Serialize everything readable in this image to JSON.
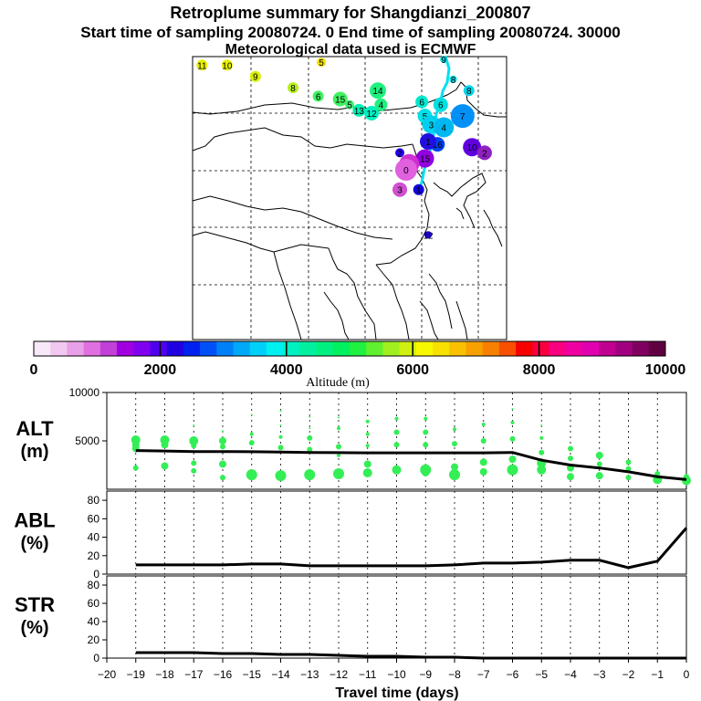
{
  "header": {
    "title": "Retroplume summary for Shangdianzi_200807",
    "sampling": "Start time of sampling 20080724.     0     End time of sampling 20080724. 30000",
    "met": "Meteorological data used is ECMWF"
  },
  "colors": {
    "scale": [
      "#f8e8f8",
      "#f0c8f0",
      "#e8a0e8",
      "#e070e0",
      "#c040d8",
      "#a000e0",
      "#8000f0",
      "#5000f0",
      "#2000e0",
      "#0020f0",
      "#0050f8",
      "#0080f8",
      "#00a8f8",
      "#00d0f8",
      "#00f0f0",
      "#00f0c0",
      "#00f0a0",
      "#00f080",
      "#00f060",
      "#20f040",
      "#60f030",
      "#a0f020",
      "#d0f010",
      "#f8f800",
      "#f8e000",
      "#f8c000",
      "#f8a000",
      "#f88000",
      "#f85000",
      "#f80000",
      "#f80040",
      "#f80080",
      "#f000a0",
      "#e000b0",
      "#c00090",
      "#a00080",
      "#800060",
      "#600040"
    ],
    "line": "#000000",
    "dots": "#33ee55"
  },
  "colorbar": {
    "ticks": [
      "0",
      "2000",
      "4000",
      "6000",
      "8000",
      "10000"
    ],
    "label": "Altitude (m)"
  },
  "map": {
    "markers": [
      {
        "t": "11",
        "lon": 0.03,
        "lat": 0.03,
        "c": "#e8f000",
        "s": 6
      },
      {
        "t": "10",
        "lon": 0.11,
        "lat": 0.03,
        "c": "#e8f000",
        "s": 6
      },
      {
        "t": "9",
        "lon": 0.2,
        "lat": 0.07,
        "c": "#d8f000",
        "s": 6
      },
      {
        "t": "8",
        "lon": 0.32,
        "lat": 0.11,
        "c": "#b8f020",
        "s": 6
      },
      {
        "t": "5",
        "lon": 0.41,
        "lat": 0.02,
        "c": "#f0e000",
        "s": 5
      },
      {
        "t": "6",
        "lon": 0.4,
        "lat": 0.14,
        "c": "#40f060",
        "s": 6
      },
      {
        "t": "15",
        "lon": 0.47,
        "lat": 0.15,
        "c": "#40f060",
        "s": 8
      },
      {
        "t": "5",
        "lon": 0.5,
        "lat": 0.17,
        "c": "#40f070",
        "s": 5
      },
      {
        "t": "13",
        "lon": 0.53,
        "lat": 0.19,
        "c": "#00f0b0",
        "s": 7
      },
      {
        "t": "12",
        "lon": 0.57,
        "lat": 0.2,
        "c": "#00f0c0",
        "s": 8
      },
      {
        "t": "14",
        "lon": 0.59,
        "lat": 0.12,
        "c": "#20f080",
        "s": 9
      },
      {
        "t": "4",
        "lon": 0.6,
        "lat": 0.17,
        "c": "#20f080",
        "s": 7
      },
      {
        "t": "6",
        "lon": 0.73,
        "lat": 0.16,
        "c": "#00e8d0",
        "s": 7
      },
      {
        "t": "5",
        "lon": 0.74,
        "lat": 0.21,
        "c": "#00e0e8",
        "s": 8
      },
      {
        "t": "3",
        "lon": 0.76,
        "lat": 0.24,
        "c": "#00d0f0",
        "s": 10
      },
      {
        "t": "4",
        "lon": 0.8,
        "lat": 0.25,
        "c": "#00b8f0",
        "s": 11
      },
      {
        "t": "7",
        "lon": 0.86,
        "lat": 0.21,
        "c": "#0090f8",
        "s": 13
      },
      {
        "t": "8",
        "lon": 0.88,
        "lat": 0.12,
        "c": "#00d8f0",
        "s": 6
      },
      {
        "t": "6",
        "lon": 0.79,
        "lat": 0.17,
        "c": "#00e0e0",
        "s": 8
      },
      {
        "t": "10",
        "lon": 0.89,
        "lat": 0.32,
        "c": "#6000e0",
        "s": 10
      },
      {
        "t": "2",
        "lon": 0.93,
        "lat": 0.34,
        "c": "#9020c0",
        "s": 8
      },
      {
        "t": "16",
        "lon": 0.78,
        "lat": 0.31,
        "c": "#0040f0",
        "s": 8
      },
      {
        "t": "1",
        "lon": 0.75,
        "lat": 0.3,
        "c": "#2010e0",
        "s": 9
      },
      {
        "t": "15",
        "lon": 0.74,
        "lat": 0.36,
        "c": "#9000e0",
        "s": 10
      },
      {
        "t": "1",
        "lon": 0.69,
        "lat": 0.38,
        "c": "#d030d0",
        "s": 11
      },
      {
        "t": "0",
        "lon": 0.68,
        "lat": 0.4,
        "c": "#e060e0",
        "s": 12
      },
      {
        "t": "3",
        "lon": 0.66,
        "lat": 0.47,
        "c": "#d050d0",
        "s": 8
      },
      {
        "t": "1",
        "lon": 0.72,
        "lat": 0.47,
        "c": "#1000e0",
        "s": 6
      },
      {
        "t": "2",
        "lon": 0.66,
        "lat": 0.34,
        "c": "#2000f0",
        "s": 5
      },
      {
        "t": "12",
        "lon": 0.75,
        "lat": 0.63,
        "c": "#2000e0",
        "s": 4
      },
      {
        "t": "9",
        "lon": 0.8,
        "lat": 0.01,
        "c": "#00e0e8",
        "s": 4
      },
      {
        "t": "8",
        "lon": 0.83,
        "lat": 0.08,
        "c": "#00e0e8",
        "s": 4
      }
    ]
  },
  "chart_data": [
    {
      "type": "scatter+line",
      "name": "ALT (m)",
      "ylabel_top": "ALT",
      "ylabel_unit": "(m)",
      "ylim": [
        0,
        10000
      ],
      "yticks": [
        "5000",
        "10000"
      ],
      "ytick_values": [
        5000,
        10000
      ],
      "xlim": [
        -20,
        0
      ],
      "line": {
        "x": [
          -19,
          -18,
          -17,
          -16,
          -15,
          -14,
          -13,
          -12,
          -11,
          -10,
          -9,
          -8,
          -7,
          -6,
          -5,
          -4,
          -3,
          -2,
          -1,
          0
        ],
        "y": [
          4000,
          3950,
          3900,
          3900,
          3880,
          3850,
          3800,
          3780,
          3760,
          3760,
          3760,
          3760,
          3760,
          3800,
          3000,
          2500,
          2200,
          1800,
          1300,
          1000
        ]
      },
      "dots": [
        {
          "x": -19,
          "y": 5100,
          "s": 5
        },
        {
          "x": -19,
          "y": 4600,
          "s": 4
        },
        {
          "x": -19,
          "y": 2200,
          "s": 3
        },
        {
          "x": -19,
          "y": 4200,
          "s": 4
        },
        {
          "x": -18,
          "y": 5100,
          "s": 5
        },
        {
          "x": -18,
          "y": 4600,
          "s": 4
        },
        {
          "x": -18,
          "y": 2400,
          "s": 4
        },
        {
          "x": -17,
          "y": 5000,
          "s": 5
        },
        {
          "x": -17,
          "y": 4500,
          "s": 3
        },
        {
          "x": -17,
          "y": 2700,
          "s": 3
        },
        {
          "x": -17,
          "y": 1900,
          "s": 3
        },
        {
          "x": -17,
          "y": 6600,
          "s": 1
        },
        {
          "x": -16,
          "y": 5000,
          "s": 4
        },
        {
          "x": -16,
          "y": 4400,
          "s": 3
        },
        {
          "x": -16,
          "y": 2600,
          "s": 4
        },
        {
          "x": -16,
          "y": 1200,
          "s": 3
        },
        {
          "x": -16,
          "y": 6000,
          "s": 1
        },
        {
          "x": -15,
          "y": 5700,
          "s": 2
        },
        {
          "x": -15,
          "y": 4800,
          "s": 3
        },
        {
          "x": -15,
          "y": 1500,
          "s": 6
        },
        {
          "x": -15,
          "y": 7700,
          "s": 1
        },
        {
          "x": -14,
          "y": 5400,
          "s": 2
        },
        {
          "x": -14,
          "y": 4300,
          "s": 3
        },
        {
          "x": -14,
          "y": 1400,
          "s": 6
        },
        {
          "x": -14,
          "y": 8100,
          "s": 1
        },
        {
          "x": -14,
          "y": 6600,
          "s": 1
        },
        {
          "x": -13,
          "y": 5300,
          "s": 3
        },
        {
          "x": -13,
          "y": 4100,
          "s": 3
        },
        {
          "x": -13,
          "y": 1500,
          "s": 6
        },
        {
          "x": -13,
          "y": 7500,
          "s": 1
        },
        {
          "x": -13,
          "y": 6300,
          "s": 1
        },
        {
          "x": -12,
          "y": 6300,
          "s": 2
        },
        {
          "x": -12,
          "y": 4400,
          "s": 3
        },
        {
          "x": -12,
          "y": 3500,
          "s": 2
        },
        {
          "x": -12,
          "y": 1600,
          "s": 6
        },
        {
          "x": -12,
          "y": 7400,
          "s": 1
        },
        {
          "x": -11,
          "y": 7000,
          "s": 2
        },
        {
          "x": -11,
          "y": 5700,
          "s": 2
        },
        {
          "x": -11,
          "y": 4500,
          "s": 2
        },
        {
          "x": -11,
          "y": 2600,
          "s": 4
        },
        {
          "x": -11,
          "y": 1700,
          "s": 5
        },
        {
          "x": -10,
          "y": 7300,
          "s": 2
        },
        {
          "x": -10,
          "y": 5900,
          "s": 3
        },
        {
          "x": -10,
          "y": 4600,
          "s": 3
        },
        {
          "x": -10,
          "y": 2000,
          "s": 5
        },
        {
          "x": -9,
          "y": 7300,
          "s": 2
        },
        {
          "x": -9,
          "y": 5900,
          "s": 3
        },
        {
          "x": -9,
          "y": 4600,
          "s": 3
        },
        {
          "x": -9,
          "y": 2000,
          "s": 6
        },
        {
          "x": -9,
          "y": 1700,
          "s": 4
        },
        {
          "x": -8,
          "y": 6200,
          "s": 2
        },
        {
          "x": -8,
          "y": 4700,
          "s": 3
        },
        {
          "x": -8,
          "y": 2300,
          "s": 4
        },
        {
          "x": -8,
          "y": 1500,
          "s": 6
        },
        {
          "x": -7,
          "y": 6700,
          "s": 2
        },
        {
          "x": -7,
          "y": 5000,
          "s": 3
        },
        {
          "x": -7,
          "y": 2800,
          "s": 4
        },
        {
          "x": -7,
          "y": 1800,
          "s": 4
        },
        {
          "x": -6,
          "y": 8300,
          "s": 1
        },
        {
          "x": -6,
          "y": 6900,
          "s": 2
        },
        {
          "x": -6,
          "y": 5200,
          "s": 3
        },
        {
          "x": -6,
          "y": 3100,
          "s": 4
        },
        {
          "x": -6,
          "y": 2000,
          "s": 6
        },
        {
          "x": -5,
          "y": 6600,
          "s": 1
        },
        {
          "x": -5,
          "y": 5300,
          "s": 2
        },
        {
          "x": -5,
          "y": 3800,
          "s": 3
        },
        {
          "x": -5,
          "y": 2700,
          "s": 5
        },
        {
          "x": -5,
          "y": 2000,
          "s": 5
        },
        {
          "x": -4,
          "y": 4200,
          "s": 3
        },
        {
          "x": -4,
          "y": 3200,
          "s": 3
        },
        {
          "x": -4,
          "y": 2200,
          "s": 4
        },
        {
          "x": -4,
          "y": 1300,
          "s": 4
        },
        {
          "x": -3,
          "y": 3500,
          "s": 4
        },
        {
          "x": -3,
          "y": 2600,
          "s": 3
        },
        {
          "x": -3,
          "y": 1400,
          "s": 4
        },
        {
          "x": -2,
          "y": 2800,
          "s": 3
        },
        {
          "x": -2,
          "y": 2100,
          "s": 3
        },
        {
          "x": -2,
          "y": 1200,
          "s": 3
        },
        {
          "x": -1,
          "y": 1600,
          "s": 3
        },
        {
          "x": -1,
          "y": 1000,
          "s": 5
        },
        {
          "x": 0,
          "y": 1300,
          "s": 3
        },
        {
          "x": 0,
          "y": 900,
          "s": 5
        }
      ]
    },
    {
      "type": "line",
      "name": "ABL (%)",
      "ylabel_top": "ABL",
      "ylabel_unit": "(%)",
      "ylim": [
        0,
        90
      ],
      "yticks": [
        "0",
        "20",
        "40",
        "60",
        "80"
      ],
      "ytick_values": [
        0,
        20,
        40,
        60,
        80
      ],
      "xlim": [
        -20,
        0
      ],
      "x": [
        -19,
        -18,
        -17,
        -16,
        -15,
        -14,
        -13,
        -12,
        -11,
        -10,
        -9,
        -8,
        -7,
        -6,
        -5,
        -4,
        -3,
        -2,
        -1,
        0
      ],
      "y": [
        10,
        10,
        10,
        10,
        11,
        11,
        9,
        9,
        9,
        9,
        9,
        10,
        12,
        12,
        13,
        15,
        15,
        7,
        14,
        50
      ]
    },
    {
      "type": "line",
      "name": "STR (%)",
      "ylabel_top": "STR",
      "ylabel_unit": "(%)",
      "ylim": [
        0,
        90
      ],
      "yticks": [
        "0",
        "20",
        "40",
        "60",
        "80"
      ],
      "ytick_values": [
        0,
        20,
        40,
        60,
        80
      ],
      "xlim": [
        -20,
        0
      ],
      "xlabel": "Travel time (days)",
      "xticks": [
        "−20",
        "−19",
        "−18",
        "−17",
        "−16",
        "−15",
        "−14",
        "−13",
        "−12",
        "−11",
        "−10",
        "−9",
        "−8",
        "−7",
        "−6",
        "−5",
        "−4",
        "−3",
        "−2",
        "−1",
        "0"
      ],
      "xtick_values": [
        -20,
        -19,
        -18,
        -17,
        -16,
        -15,
        -14,
        -13,
        -12,
        -11,
        -10,
        -9,
        -8,
        -7,
        -6,
        -5,
        -4,
        -3,
        -2,
        -1,
        0
      ],
      "x": [
        -19,
        -18,
        -17,
        -16,
        -15,
        -14,
        -13,
        -12,
        -11,
        -10,
        -9,
        -8,
        -7,
        -6,
        -5,
        -4,
        -3,
        -2,
        -1,
        0
      ],
      "y": [
        6,
        6,
        6,
        5,
        5,
        4,
        4,
        3,
        2,
        2,
        1,
        1,
        0,
        0,
        0,
        0,
        0,
        0,
        0,
        0
      ]
    }
  ]
}
